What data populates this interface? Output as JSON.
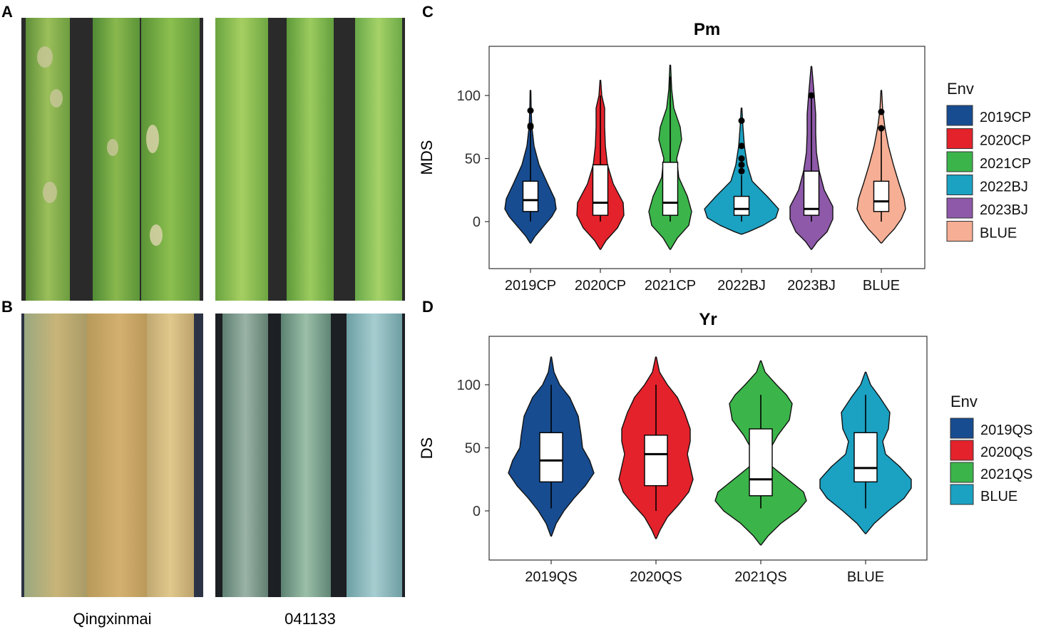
{
  "panel_labels": {
    "a": "A",
    "b": "B",
    "c": "C",
    "d": "D"
  },
  "photo_captions": {
    "left": "Qingxinmai",
    "right": "041133"
  },
  "colors": {
    "2019CP": "#174c91",
    "2020CP": "#e4222b",
    "2021CP": "#3bb54a",
    "2022BJ": "#1ba1c2",
    "2023BJ": "#8d59a8",
    "BLUE_C": "#f6ae94",
    "2019QS": "#174c91",
    "2020QS": "#e4222b",
    "2021QS": "#3bb54a",
    "BLUE_D": "#1ba1c2"
  },
  "chart_data": [
    {
      "type": "violin",
      "title": "Pm",
      "ylabel": "MDS",
      "xlabel": "",
      "categories": [
        "2019CP",
        "2020CP",
        "2021CP",
        "2022BJ",
        "2023BJ",
        "BLUE"
      ],
      "yticks": [
        0,
        50,
        100
      ],
      "ylim": [
        -25,
        135
      ],
      "legend": {
        "title": "Env",
        "position": "right",
        "entries": [
          "2019CP",
          "2020CP",
          "2021CP",
          "2022BJ",
          "2023BJ",
          "BLUE"
        ]
      },
      "boxes": [
        {
          "q1": 8,
          "median": 17,
          "q3": 32,
          "min": 0,
          "max": 75,
          "outliers": [
            75,
            76,
            88
          ]
        },
        {
          "q1": 5,
          "median": 15,
          "q3": 45,
          "min": 0,
          "max": 100,
          "outliers": []
        },
        {
          "q1": 5,
          "median": 15,
          "q3": 47,
          "min": 0,
          "max": 115,
          "outliers": []
        },
        {
          "q1": 5,
          "median": 10,
          "q3": 20,
          "min": 0,
          "max": 37,
          "outliers": [
            40,
            45,
            50,
            60,
            80
          ]
        },
        {
          "q1": 5,
          "median": 10,
          "q3": 40,
          "min": 0,
          "max": 100,
          "outliers": [
            100
          ]
        },
        {
          "q1": 8,
          "median": 16,
          "q3": 32,
          "min": 0,
          "max": 74,
          "outliers": [
            74,
            87
          ]
        }
      ]
    },
    {
      "type": "violin",
      "title": "Yr",
      "ylabel": "DS",
      "xlabel": "",
      "categories": [
        "2019QS",
        "2020QS",
        "2021QS",
        "BLUE"
      ],
      "yticks": [
        0,
        50,
        100
      ],
      "ylim": [
        -40,
        135
      ],
      "legend": {
        "title": "Env",
        "position": "right",
        "entries": [
          "2019QS",
          "2020QS",
          "2021QS",
          "BLUE"
        ]
      },
      "boxes": [
        {
          "q1": 23,
          "median": 40,
          "q3": 62,
          "min": 2,
          "max": 100
        },
        {
          "q1": 20,
          "median": 45,
          "q3": 60,
          "min": 0,
          "max": 100
        },
        {
          "q1": 12,
          "median": 25,
          "q3": 65,
          "min": 2,
          "max": 92
        },
        {
          "q1": 23,
          "median": 34,
          "q3": 62,
          "min": 2,
          "max": 92
        }
      ]
    }
  ]
}
